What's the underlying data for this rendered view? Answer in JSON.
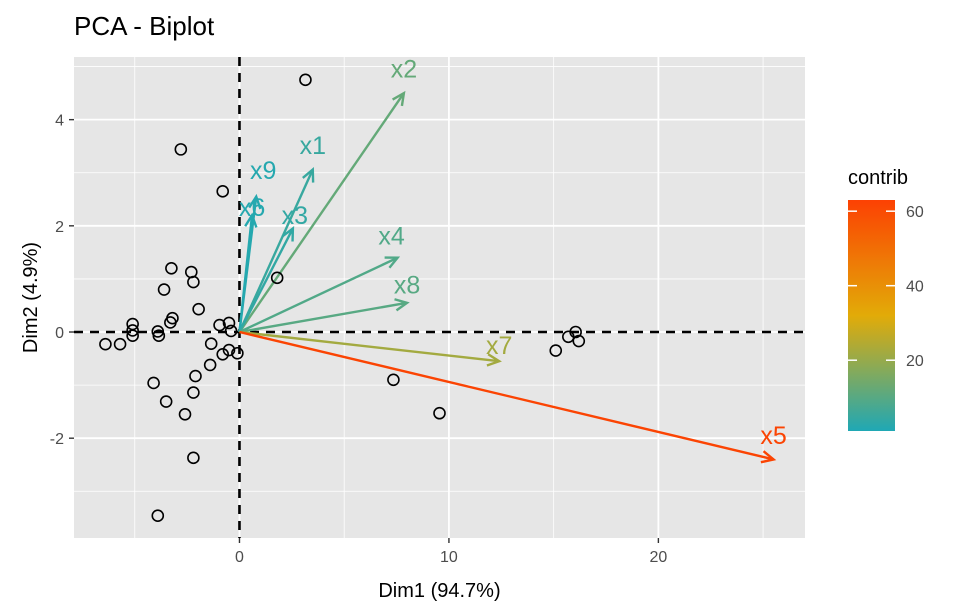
{
  "chart_data": {
    "type": "scatter",
    "title": "PCA - Biplot",
    "xlabel": "Dim1 (94.7%)",
    "ylabel": "Dim2 (4.9%)",
    "xlim": [
      -7.9,
      27.0
    ],
    "ylim": [
      -3.88,
      5.18
    ],
    "xticks": [
      0,
      10,
      20
    ],
    "yticks": [
      -2,
      0,
      2,
      4
    ],
    "grid": true,
    "points": [
      {
        "x": -6.4,
        "y": -0.23
      },
      {
        "x": -5.7,
        "y": -0.23
      },
      {
        "x": -5.1,
        "y": 0.15
      },
      {
        "x": -5.1,
        "y": 0.03
      },
      {
        "x": -5.1,
        "y": -0.07
      },
      {
        "x": -3.9,
        "y": 0.01
      },
      {
        "x": -3.85,
        "y": -0.07
      },
      {
        "x": -3.3,
        "y": 0.18
      },
      {
        "x": -3.2,
        "y": 0.26
      },
      {
        "x": -3.6,
        "y": 0.8
      },
      {
        "x": -3.25,
        "y": 1.2
      },
      {
        "x": -2.3,
        "y": 1.13
      },
      {
        "x": -2.2,
        "y": 0.94
      },
      {
        "x": -1.95,
        "y": 0.43
      },
      {
        "x": -0.95,
        "y": 0.13
      },
      {
        "x": -0.5,
        "y": 0.17
      },
      {
        "x": -0.4,
        "y": 0.02
      },
      {
        "x": -1.35,
        "y": -0.22
      },
      {
        "x": -0.8,
        "y": -0.42
      },
      {
        "x": -0.5,
        "y": -0.34
      },
      {
        "x": -0.1,
        "y": -0.4
      },
      {
        "x": -1.4,
        "y": -0.62
      },
      {
        "x": -2.1,
        "y": -0.83
      },
      {
        "x": -4.1,
        "y": -0.96
      },
      {
        "x": -3.5,
        "y": -1.31
      },
      {
        "x": -2.2,
        "y": -1.14
      },
      {
        "x": -2.6,
        "y": -1.55
      },
      {
        "x": -2.2,
        "y": -2.37
      },
      {
        "x": -3.9,
        "y": -3.46
      },
      {
        "x": -2.8,
        "y": 3.44
      },
      {
        "x": -0.8,
        "y": 2.65
      },
      {
        "x": 3.15,
        "y": 4.75
      },
      {
        "x": 1.8,
        "y": 1.02
      },
      {
        "x": 7.35,
        "y": -0.9
      },
      {
        "x": 9.55,
        "y": -1.53
      },
      {
        "x": 15.1,
        "y": -0.35
      },
      {
        "x": 15.7,
        "y": -0.09
      },
      {
        "x": 16.05,
        "y": 0.0
      },
      {
        "x": 16.2,
        "y": -0.17
      }
    ],
    "variables": [
      {
        "name": "x2",
        "x": 7.85,
        "y": 4.5,
        "contrib": 12
      },
      {
        "name": "x1",
        "x": 3.5,
        "y": 3.06,
        "contrib": 5
      },
      {
        "name": "x9",
        "x": 0.8,
        "y": 2.55,
        "contrib": 2
      },
      {
        "name": "x6",
        "x": 0.6,
        "y": 2.2,
        "contrib": 2
      },
      {
        "name": "x3",
        "x": 2.55,
        "y": 1.95,
        "contrib": 4
      },
      {
        "name": "x4",
        "x": 7.55,
        "y": 1.4,
        "contrib": 9
      },
      {
        "name": "x8",
        "x": 8.0,
        "y": 0.55,
        "contrib": 10
      },
      {
        "name": "x7",
        "x": 12.4,
        "y": -0.55,
        "contrib": 22
      },
      {
        "name": "x5",
        "x": 25.5,
        "y": -2.4,
        "contrib": 62
      }
    ],
    "legend": {
      "title": "contrib",
      "placement": "right",
      "range": [
        1,
        63
      ],
      "ticks": [
        20,
        40,
        60
      ],
      "colors": [
        "#1fa8b5",
        "#e2ab08",
        "#fc4103"
      ]
    },
    "colors": {
      "panel": "#e6e6e6",
      "grid": "#ffffff",
      "point_stroke": "#000000"
    }
  }
}
